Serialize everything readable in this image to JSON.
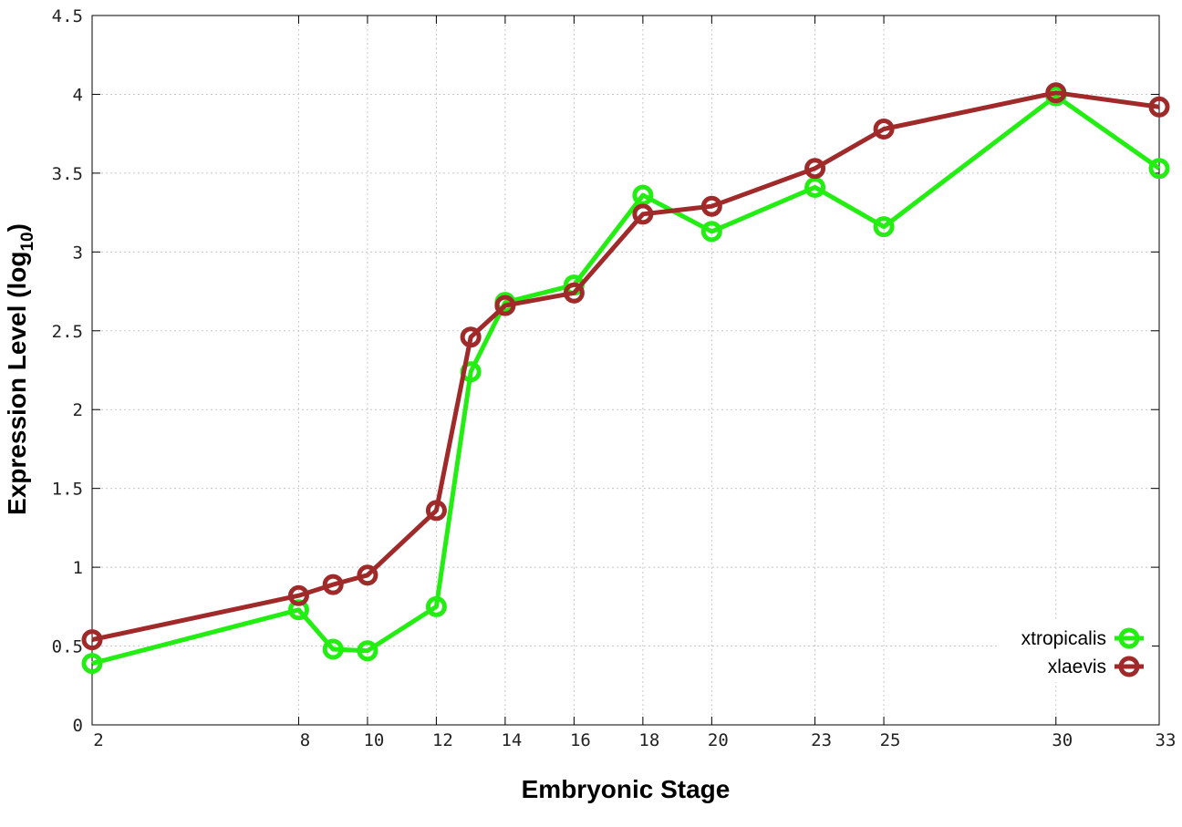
{
  "chart_data": {
    "type": "line",
    "xlabel": "Embryonic Stage",
    "ylabel": "Expression Level (log",
    "ylabel_subscript": "10",
    "ylabel_close": ")",
    "x_ticks": [
      "2",
      "8",
      "10",
      "12",
      "14",
      "16",
      "18",
      "20",
      "23",
      "25",
      "30",
      "33"
    ],
    "y_ticks": [
      "0",
      "0.5",
      "1",
      "1.5",
      "2",
      "2.5",
      "3",
      "3.5",
      "4",
      "4.5"
    ],
    "ylim": [
      0,
      4.5
    ],
    "xlim": [
      2,
      33
    ],
    "grid": true,
    "legend_position": "bottom-right",
    "series": [
      {
        "name": "xtropicalis",
        "color": "#22ee11",
        "marker": "open-circle",
        "x": [
          2,
          8,
          9,
          10,
          12,
          13,
          14,
          16,
          18,
          20,
          23,
          25,
          30,
          33
        ],
        "y": [
          0.39,
          0.73,
          0.48,
          0.47,
          0.75,
          2.24,
          2.68,
          2.79,
          3.36,
          3.13,
          3.41,
          3.16,
          3.99,
          3.53
        ]
      },
      {
        "name": "xlaevis",
        "color": "#a02a2a",
        "marker": "open-circle",
        "x": [
          2,
          8,
          9,
          10,
          12,
          13,
          14,
          16,
          18,
          20,
          23,
          25,
          30,
          33
        ],
        "y": [
          0.54,
          0.82,
          0.89,
          0.95,
          1.36,
          2.46,
          2.66,
          2.74,
          3.24,
          3.29,
          3.53,
          3.78,
          4.01,
          3.92
        ]
      }
    ]
  }
}
